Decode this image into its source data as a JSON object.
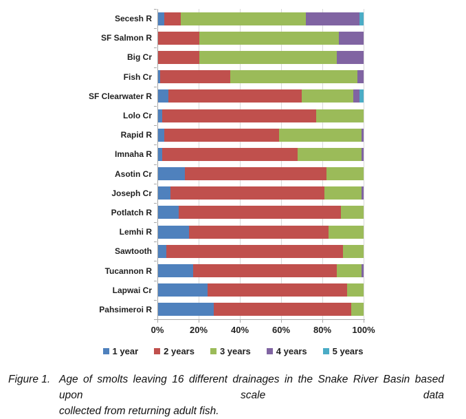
{
  "caption": {
    "label": "Figure 1.",
    "line1": "Age of smolts leaving 16 different drainages in the Snake River Basin based upon scale data",
    "line2": "collected from returning adult fish."
  },
  "colors": {
    "axis": "#a6a6a6",
    "gridline": "#d9d9d9",
    "text": "#1f1f1f"
  },
  "chart_data": {
    "type": "bar",
    "orientation": "horizontal",
    "stacked": true,
    "unit": "percent",
    "xlim": [
      0,
      100
    ],
    "x_ticks": [
      "0%",
      "20%",
      "40%",
      "60%",
      "80%",
      "100%"
    ],
    "x_tick_values": [
      0,
      20,
      40,
      60,
      80,
      100
    ],
    "grid": true,
    "legend_position": "bottom",
    "categories": [
      "Secesh R",
      "SF Salmon R",
      "Big Cr",
      "Fish Cr",
      "SF Clearwater R",
      "Lolo Cr",
      "Rapid R",
      "Imnaha R",
      "Asotin Cr",
      "Joseph Cr",
      "Potlatch R",
      "Lemhi R",
      "Sawtooth",
      "Tucannon R",
      "Lapwai Cr",
      "Pahsimeroi R"
    ],
    "series": [
      {
        "name": "1 year",
        "color": "#4F81BD",
        "values": [
          3,
          0,
          0,
          1,
          5,
          2,
          3,
          2,
          13,
          6,
          10,
          15,
          4,
          17,
          24,
          27
        ]
      },
      {
        "name": "2 years",
        "color": "#C0504D",
        "values": [
          8,
          20,
          20,
          34,
          65,
          75,
          56,
          66,
          69,
          75,
          79,
          68,
          86,
          70,
          68,
          67
        ]
      },
      {
        "name": "3 years",
        "color": "#9BBB59",
        "values": [
          61,
          68,
          67,
          62,
          25,
          23,
          40,
          31,
          18,
          18,
          11,
          17,
          10,
          12,
          8,
          6
        ]
      },
      {
        "name": "4 years",
        "color": "#8064A2",
        "values": [
          26,
          12,
          13,
          3,
          3,
          0,
          1,
          1,
          0,
          1,
          0,
          0,
          0,
          1,
          0,
          0
        ]
      },
      {
        "name": "5 years",
        "color": "#4BACC6",
        "values": [
          2,
          0,
          0,
          0,
          2,
          0,
          0,
          0,
          0,
          0,
          0,
          0,
          0,
          0,
          0,
          0
        ]
      }
    ]
  }
}
